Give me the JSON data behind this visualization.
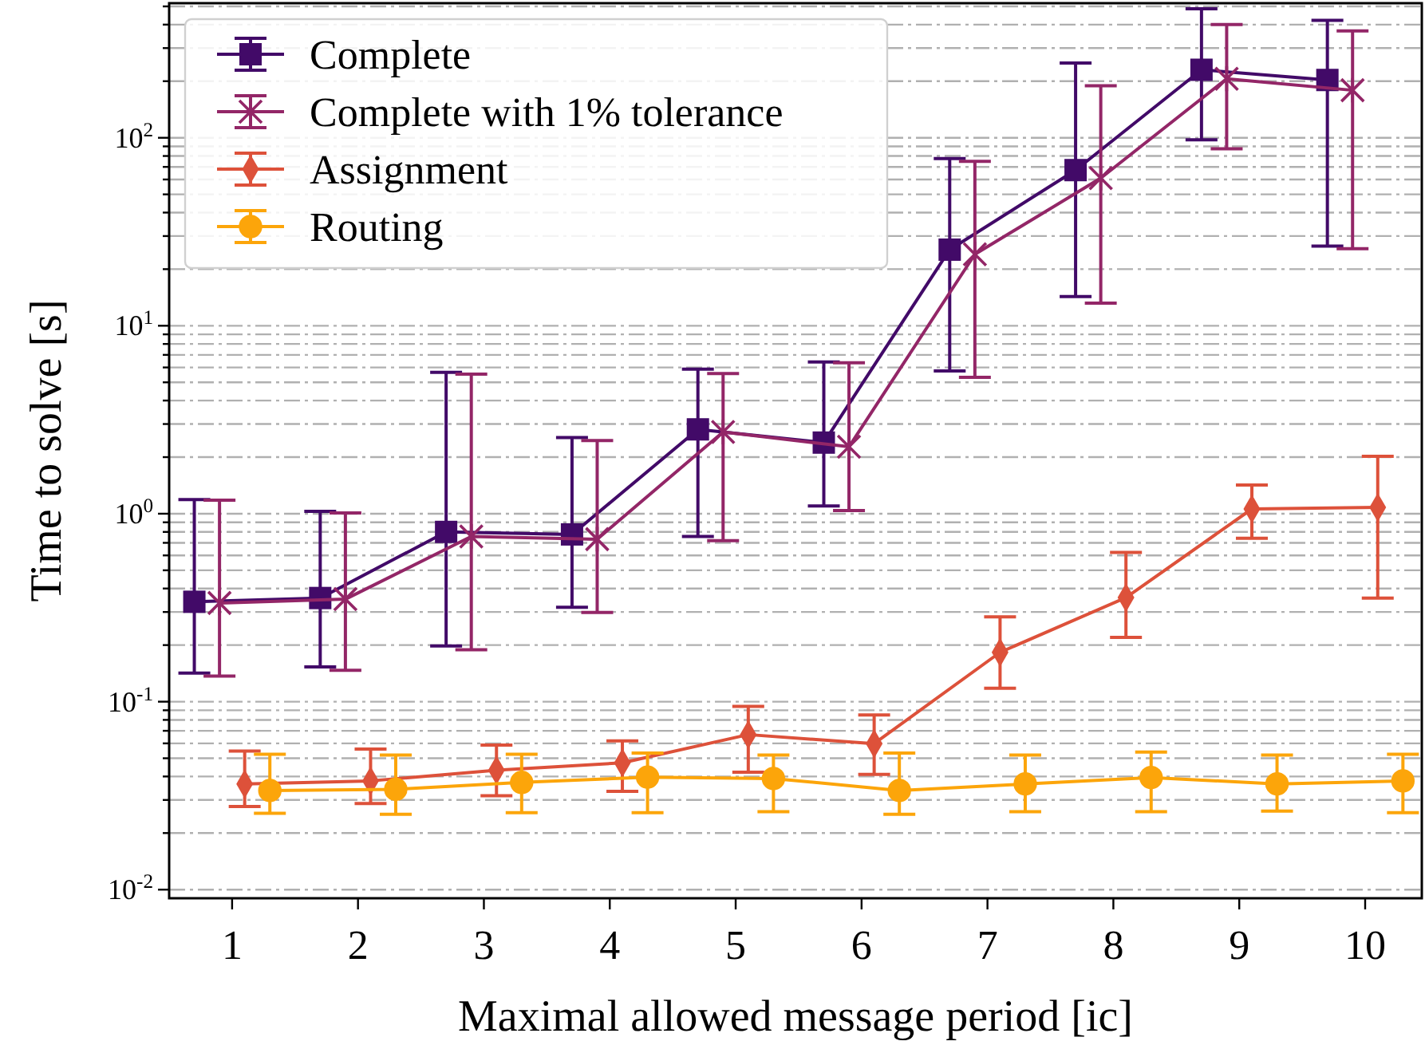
{
  "chart_data": {
    "type": "line",
    "xlabel": "Maximal allowed message period [ic]",
    "ylabel": "Time to solve [s]",
    "log": "y",
    "grid": "y",
    "legend": "top left",
    "line_style": "solid",
    "xlim": [
      0.5,
      10.45
    ],
    "xticks": [
      1,
      2,
      3,
      4,
      5,
      6,
      7,
      8,
      9,
      10
    ],
    "ylim": [
      0.009,
      520
    ],
    "yticks": [
      {
        "value": 0.01,
        "label": "10$^{-2}$"
      },
      {
        "value": 0.02,
        "label": null
      },
      {
        "value": 0.03,
        "label": null
      },
      {
        "value": 0.04,
        "label": null
      },
      {
        "value": 0.05,
        "label": null
      },
      {
        "value": 0.06,
        "label": null
      },
      {
        "value": 0.07,
        "label": null
      },
      {
        "value": 0.08,
        "label": null
      },
      {
        "value": 0.09,
        "label": null
      },
      {
        "value": 0.1,
        "label": "10$^{-1}$"
      },
      {
        "value": 0.2,
        "label": null
      },
      {
        "value": 0.3,
        "label": null
      },
      {
        "value": 0.4,
        "label": null
      },
      {
        "value": 0.5,
        "label": null
      },
      {
        "value": 0.6,
        "label": null
      },
      {
        "value": 0.7,
        "label": null
      },
      {
        "value": 0.8,
        "label": null
      },
      {
        "value": 0.9,
        "label": null
      },
      {
        "value": 1,
        "label": "10$^{0}$"
      },
      {
        "value": 2,
        "label": null
      },
      {
        "value": 3,
        "label": null
      },
      {
        "value": 4,
        "label": null
      },
      {
        "value": 5,
        "label": null
      },
      {
        "value": 6,
        "label": null
      },
      {
        "value": 7,
        "label": null
      },
      {
        "value": 8,
        "label": null
      },
      {
        "value": 9,
        "label": null
      },
      {
        "value": 10,
        "label": "10$^{1}$"
      },
      {
        "value": 20,
        "label": null
      },
      {
        "value": 30,
        "label": null
      },
      {
        "value": 40,
        "label": null
      },
      {
        "value": 50,
        "label": null
      },
      {
        "value": 60,
        "label": null
      },
      {
        "value": 70,
        "label": null
      },
      {
        "value": 80,
        "label": null
      },
      {
        "value": 90,
        "label": null
      },
      {
        "value": 100,
        "label": "10$^{2}$"
      },
      {
        "value": 200,
        "label": null
      },
      {
        "value": 300,
        "label": null
      },
      {
        "value": 400,
        "label": null
      },
      {
        "value": 500,
        "label": null
      }
    ],
    "series": [
      {
        "name": "Complete",
        "color": "#420a68",
        "marker": "square",
        "x": [
          0.7,
          1.7,
          2.7,
          3.7,
          4.7,
          5.7,
          6.7,
          7.7,
          8.7,
          9.7
        ],
        "values": [
          0.34,
          0.356,
          0.8,
          0.776,
          2.81,
          2.39,
          25.4,
          67.3,
          230,
          203
        ],
        "errors": [
          [
            0.142,
            1.19
          ],
          [
            0.153,
            1.03
          ],
          [
            0.198,
            5.65
          ],
          [
            0.318,
            2.54
          ],
          [
            0.757,
            5.87
          ],
          [
            1.1,
            6.42
          ],
          [
            5.75,
            77.6
          ],
          [
            14.3,
            250
          ],
          [
            97.5,
            486
          ],
          [
            26.5,
            421
          ]
        ]
      },
      {
        "name": "Complete with 1% tolerance",
        "color": "#932667",
        "marker": "cross",
        "x": [
          0.9,
          1.9,
          2.9,
          3.9,
          4.9,
          5.9,
          6.9,
          7.9,
          8.9,
          9.9
        ],
        "values": [
          0.335,
          0.351,
          0.757,
          0.732,
          2.72,
          2.27,
          24,
          61,
          206,
          179
        ],
        "errors": [
          [
            0.137,
            1.18
          ],
          [
            0.147,
            1.01
          ],
          [
            0.189,
            5.53
          ],
          [
            0.298,
            2.45
          ],
          [
            0.718,
            5.57
          ],
          [
            1.04,
            6.35
          ],
          [
            5.32,
            75
          ],
          [
            13.2,
            189
          ],
          [
            87.3,
            400
          ],
          [
            25.7,
            370
          ]
        ]
      },
      {
        "name": "Assignment",
        "color": "#dd513a",
        "marker": "diamond",
        "x": [
          1.1,
          2.1,
          3.1,
          4.1,
          5.1,
          6.1,
          7.1,
          8.1,
          9.1,
          10.1
        ],
        "values": [
          0.0365,
          0.0379,
          0.0432,
          0.0473,
          0.0668,
          0.0598,
          0.183,
          0.358,
          1.06,
          1.08
        ],
        "errors": [
          [
            0.0277,
            0.0546
          ],
          [
            0.0287,
            0.056
          ],
          [
            0.0316,
            0.0587
          ],
          [
            0.0333,
            0.0618
          ],
          [
            0.0421,
            0.0944
          ],
          [
            0.041,
            0.085
          ],
          [
            0.118,
            0.283
          ],
          [
            0.22,
            0.622
          ],
          [
            0.741,
            1.42
          ],
          [
            0.356,
            2.02
          ]
        ]
      },
      {
        "name": "Routing",
        "color": "#fca50a",
        "marker": "circle",
        "x": [
          1.3,
          2.3,
          3.3,
          4.3,
          5.3,
          6.3,
          7.3,
          8.3,
          9.3,
          10.3
        ],
        "values": [
          0.0337,
          0.0342,
          0.0372,
          0.0397,
          0.039,
          0.0337,
          0.0365,
          0.0395,
          0.0365,
          0.0379
        ],
        "errors": [
          [
            0.0255,
            0.0525
          ],
          [
            0.0252,
            0.052
          ],
          [
            0.0257,
            0.0525
          ],
          [
            0.0257,
            0.0533
          ],
          [
            0.026,
            0.052
          ],
          [
            0.0252,
            0.0533
          ],
          [
            0.026,
            0.052
          ],
          [
            0.026,
            0.0539
          ],
          [
            0.0262,
            0.052
          ],
          [
            0.0257,
            0.0525
          ]
        ]
      }
    ]
  }
}
